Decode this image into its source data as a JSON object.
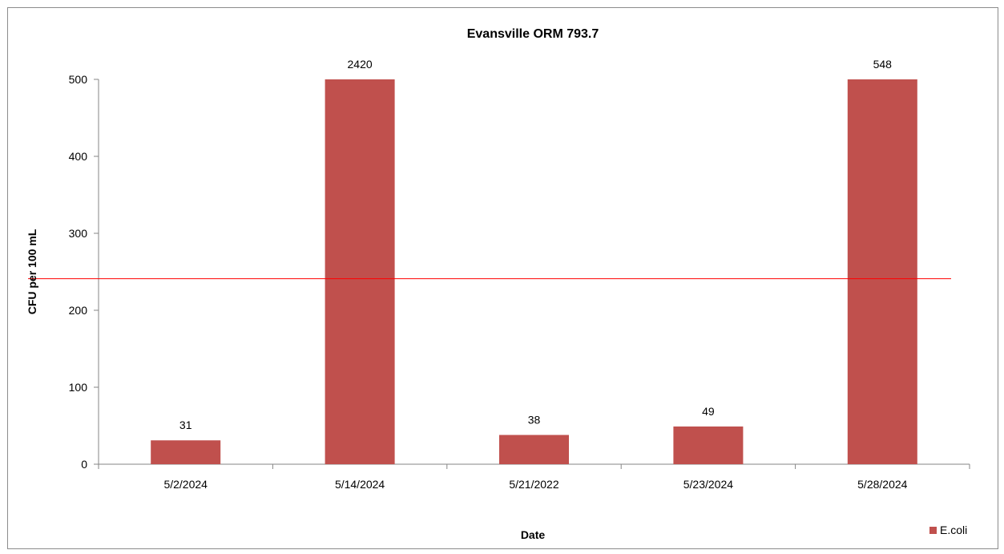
{
  "chart_data": {
    "type": "bar",
    "title": "Evansville ORM 793.7",
    "xlabel": "Date",
    "ylabel": "CFU per 100 mL",
    "categories": [
      "5/2/2024",
      "5/14/2024",
      "5/21/2022",
      "5/23/2024",
      "5/28/2024"
    ],
    "series": [
      {
        "name": "E.coli",
        "values": [
          31,
          2420,
          38,
          49,
          548
        ],
        "data_labels": [
          "31",
          "2420",
          "38",
          "49",
          "548"
        ],
        "color": "#C0504D"
      }
    ],
    "ylim": [
      0,
      500
    ],
    "yticks": [
      "0",
      "100",
      "200",
      "300",
      "400",
      "500"
    ],
    "reference_line": {
      "value": 241,
      "color": "#FF0000"
    },
    "grid": false,
    "legend": "bottom-right"
  }
}
